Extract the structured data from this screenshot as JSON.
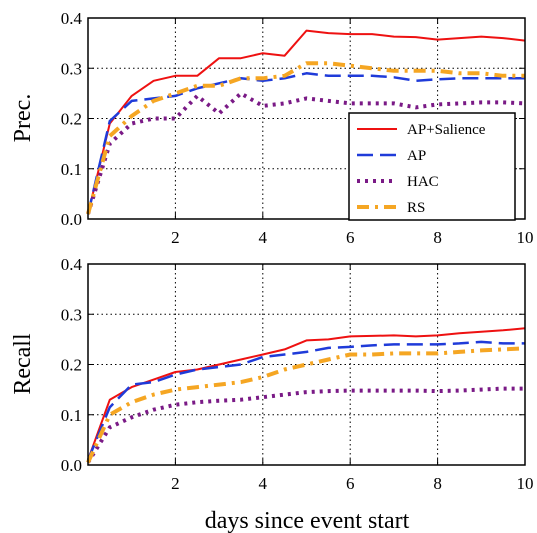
{
  "chart_data": [
    {
      "type": "line",
      "title": "",
      "xlabel": "",
      "ylabel": "Prec.",
      "xlim": [
        0,
        10
      ],
      "ylim": [
        0,
        0.4
      ],
      "xticks": [
        "2",
        "4",
        "6",
        "8",
        "10"
      ],
      "yticks": [
        "0.0",
        "0.1",
        "0.2",
        "0.3",
        "0.4"
      ],
      "grid": true,
      "legend_position": "lower-right",
      "series": [
        {
          "name": "AP+Salience",
          "color": "#ee1111",
          "dash": "solid",
          "x": [
            0,
            0.5,
            1,
            1.5,
            2,
            2.5,
            3,
            3.5,
            4,
            4.5,
            5,
            5.5,
            6,
            6.5,
            7,
            7.5,
            8,
            8.5,
            9,
            9.5,
            10
          ],
          "y": [
            0.01,
            0.19,
            0.245,
            0.275,
            0.285,
            0.285,
            0.32,
            0.32,
            0.33,
            0.325,
            0.375,
            0.37,
            0.368,
            0.368,
            0.363,
            0.362,
            0.357,
            0.36,
            0.363,
            0.36,
            0.355
          ]
        },
        {
          "name": "AP",
          "color": "#1f3bd9",
          "dash": "dashed",
          "x": [
            0,
            0.5,
            1,
            1.5,
            2,
            2.5,
            3,
            3.5,
            4,
            4.5,
            5,
            5.5,
            6,
            6.5,
            7,
            7.5,
            8,
            8.5,
            9,
            9.5,
            10
          ],
          "y": [
            0.01,
            0.195,
            0.235,
            0.24,
            0.245,
            0.26,
            0.27,
            0.28,
            0.275,
            0.28,
            0.29,
            0.285,
            0.285,
            0.285,
            0.282,
            0.275,
            0.278,
            0.28,
            0.28,
            0.28,
            0.28
          ]
        },
        {
          "name": "HAC",
          "color": "#7a1a86",
          "dash": "dotted",
          "x": [
            0,
            0.5,
            1,
            1.5,
            2,
            2.5,
            3,
            3.5,
            4,
            4.5,
            5,
            5.5,
            6,
            6.5,
            7,
            7.5,
            8,
            8.5,
            9,
            9.5,
            10
          ],
          "y": [
            0.01,
            0.15,
            0.19,
            0.2,
            0.2,
            0.245,
            0.21,
            0.25,
            0.225,
            0.23,
            0.24,
            0.235,
            0.23,
            0.23,
            0.23,
            0.222,
            0.228,
            0.23,
            0.232,
            0.232,
            0.23
          ]
        },
        {
          "name": "RS",
          "color": "#f5a623",
          "dash": "dashdot",
          "x": [
            0,
            0.5,
            1,
            1.5,
            2,
            2.5,
            3,
            3.5,
            4,
            4.5,
            5,
            5.5,
            6,
            6.5,
            7,
            7.5,
            8,
            8.5,
            9,
            9.5,
            10
          ],
          "y": [
            0.01,
            0.165,
            0.205,
            0.235,
            0.25,
            0.265,
            0.265,
            0.28,
            0.28,
            0.285,
            0.31,
            0.31,
            0.305,
            0.3,
            0.295,
            0.295,
            0.295,
            0.29,
            0.29,
            0.285,
            0.285
          ]
        }
      ]
    },
    {
      "type": "line",
      "title": "",
      "xlabel": "days since event start",
      "ylabel": "Recall",
      "xlim": [
        0,
        10
      ],
      "ylim": [
        0,
        0.4
      ],
      "xticks": [
        "2",
        "4",
        "6",
        "8",
        "10"
      ],
      "yticks": [
        "0.0",
        "0.1",
        "0.2",
        "0.3",
        "0.4"
      ],
      "grid": true,
      "series": [
        {
          "name": "AP+Salience",
          "color": "#ee1111",
          "dash": "solid",
          "x": [
            0,
            0.5,
            1,
            1.5,
            2,
            2.5,
            3,
            3.5,
            4,
            4.5,
            5,
            5.5,
            6,
            6.5,
            7,
            7.5,
            8,
            8.5,
            9,
            9.5,
            10
          ],
          "y": [
            0.01,
            0.13,
            0.155,
            0.17,
            0.185,
            0.19,
            0.2,
            0.21,
            0.22,
            0.23,
            0.248,
            0.25,
            0.256,
            0.257,
            0.258,
            0.256,
            0.258,
            0.262,
            0.265,
            0.268,
            0.272
          ]
        },
        {
          "name": "AP",
          "color": "#1f3bd9",
          "dash": "dashed",
          "x": [
            0,
            0.5,
            1,
            1.5,
            2,
            2.5,
            3,
            3.5,
            4,
            4.5,
            5,
            5.5,
            6,
            6.5,
            7,
            7.5,
            8,
            8.5,
            9,
            9.5,
            10
          ],
          "y": [
            0.01,
            0.115,
            0.16,
            0.165,
            0.18,
            0.19,
            0.195,
            0.2,
            0.215,
            0.22,
            0.225,
            0.233,
            0.235,
            0.238,
            0.24,
            0.24,
            0.24,
            0.242,
            0.245,
            0.242,
            0.242
          ]
        },
        {
          "name": "HAC",
          "color": "#7a1a86",
          "dash": "dotted",
          "x": [
            0,
            0.5,
            1,
            1.5,
            2,
            2.5,
            3,
            3.5,
            4,
            4.5,
            5,
            5.5,
            6,
            6.5,
            7,
            7.5,
            8,
            8.5,
            9,
            9.5,
            10
          ],
          "y": [
            0.005,
            0.075,
            0.095,
            0.11,
            0.12,
            0.125,
            0.128,
            0.13,
            0.135,
            0.14,
            0.145,
            0.147,
            0.148,
            0.148,
            0.148,
            0.148,
            0.147,
            0.148,
            0.15,
            0.152,
            0.152
          ]
        },
        {
          "name": "RS",
          "color": "#f5a623",
          "dash": "dashdot",
          "x": [
            0,
            0.5,
            1,
            1.5,
            2,
            2.5,
            3,
            3.5,
            4,
            4.5,
            5,
            5.5,
            6,
            6.5,
            7,
            7.5,
            8,
            8.5,
            9,
            9.5,
            10
          ],
          "y": [
            0.005,
            0.1,
            0.125,
            0.14,
            0.15,
            0.155,
            0.16,
            0.165,
            0.175,
            0.19,
            0.2,
            0.21,
            0.22,
            0.22,
            0.222,
            0.222,
            0.222,
            0.225,
            0.228,
            0.23,
            0.232
          ]
        }
      ]
    }
  ]
}
